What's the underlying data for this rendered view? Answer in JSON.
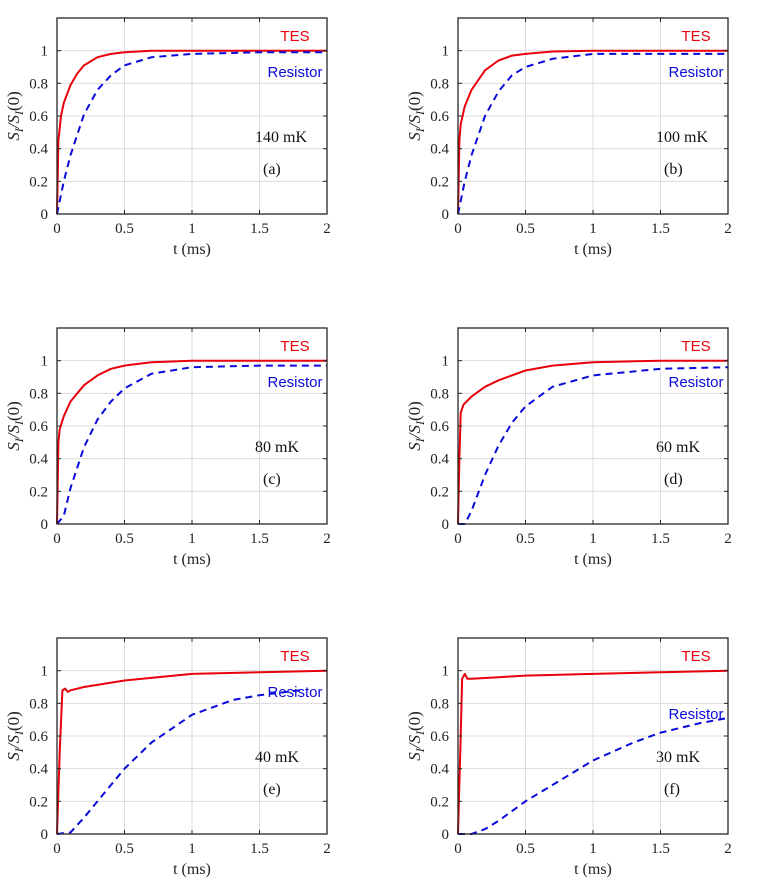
{
  "colors": {
    "tes": "#e8000b",
    "resistor": "#0a0adb",
    "grid": "#dcdcdc",
    "axis": "#262626"
  },
  "chart_data": [
    {
      "type": "line",
      "panel": "(a)",
      "annotation": "140 mK",
      "xlabel": "t (ms)",
      "ylabel": "S_I/S_I(0)",
      "xlim": [
        0,
        2
      ],
      "ylim": [
        0,
        1.2
      ],
      "xticks": [
        "0",
        "0.5",
        "1",
        "1.5",
        "2"
      ],
      "yticks": [
        "0",
        "0.2",
        "0.4",
        "0.6",
        "0.8",
        "1"
      ],
      "grid": true,
      "legend": "top-right",
      "series": [
        {
          "name": "TES",
          "style": "solid",
          "x": [
            0,
            0.01,
            0.03,
            0.05,
            0.1,
            0.15,
            0.2,
            0.3,
            0.4,
            0.5,
            0.7,
            1.0,
            1.5,
            2.0
          ],
          "y": [
            0,
            0.45,
            0.6,
            0.68,
            0.79,
            0.86,
            0.91,
            0.96,
            0.98,
            0.99,
            1.0,
            1.0,
            1.0,
            1.0
          ]
        },
        {
          "name": "Resistor",
          "style": "dashed",
          "x": [
            0,
            0.05,
            0.1,
            0.2,
            0.3,
            0.4,
            0.5,
            0.7,
            1.0,
            1.5,
            2.0
          ],
          "y": [
            0,
            0.2,
            0.36,
            0.61,
            0.76,
            0.85,
            0.91,
            0.96,
            0.98,
            0.99,
            0.99
          ]
        }
      ]
    },
    {
      "type": "line",
      "panel": "(b)",
      "annotation": "100 mK",
      "xlabel": "t (ms)",
      "ylabel": "S_I/S_I(0)",
      "xlim": [
        0,
        2
      ],
      "ylim": [
        0,
        1.2
      ],
      "xticks": [
        "0",
        "0.5",
        "1",
        "1.5",
        "2"
      ],
      "yticks": [
        "0",
        "0.2",
        "0.4",
        "0.6",
        "0.8",
        "1"
      ],
      "grid": true,
      "legend": "top-right",
      "series": [
        {
          "name": "TES",
          "style": "solid",
          "x": [
            0,
            0.01,
            0.02,
            0.05,
            0.1,
            0.2,
            0.3,
            0.4,
            0.5,
            0.7,
            1.0,
            1.5,
            2.0
          ],
          "y": [
            0,
            0.45,
            0.55,
            0.66,
            0.76,
            0.88,
            0.94,
            0.97,
            0.98,
            0.995,
            1.0,
            1.0,
            1.0
          ]
        },
        {
          "name": "Resistor",
          "style": "dashed",
          "x": [
            0,
            0.05,
            0.1,
            0.2,
            0.3,
            0.4,
            0.5,
            0.7,
            1.0,
            1.5,
            2.0
          ],
          "y": [
            0,
            0.2,
            0.36,
            0.6,
            0.75,
            0.85,
            0.9,
            0.95,
            0.98,
            0.98,
            0.98
          ]
        }
      ]
    },
    {
      "type": "line",
      "panel": "(c)",
      "annotation": "80 mK",
      "xlabel": "t (ms)",
      "ylabel": "S_I/S_I(0)",
      "xlim": [
        0,
        2
      ],
      "ylim": [
        0,
        1.2
      ],
      "xticks": [
        "0",
        "0.5",
        "1",
        "1.5",
        "2"
      ],
      "yticks": [
        "0",
        "0.2",
        "0.4",
        "0.6",
        "0.8",
        "1"
      ],
      "grid": true,
      "legend": "top-right",
      "series": [
        {
          "name": "TES",
          "style": "solid",
          "x": [
            0,
            0.01,
            0.02,
            0.05,
            0.1,
            0.2,
            0.3,
            0.4,
            0.5,
            0.7,
            1.0,
            1.5,
            2.0
          ],
          "y": [
            0,
            0.5,
            0.58,
            0.66,
            0.75,
            0.85,
            0.91,
            0.95,
            0.97,
            0.99,
            1.0,
            1.0,
            1.0
          ]
        },
        {
          "name": "Resistor",
          "style": "dashed",
          "x": [
            0,
            0.05,
            0.1,
            0.2,
            0.3,
            0.4,
            0.5,
            0.7,
            1.0,
            1.5,
            2.0
          ],
          "y": [
            0,
            0.05,
            0.22,
            0.47,
            0.64,
            0.75,
            0.83,
            0.92,
            0.96,
            0.97,
            0.97
          ]
        }
      ]
    },
    {
      "type": "line",
      "panel": "(d)",
      "annotation": "60 mK",
      "xlabel": "t (ms)",
      "ylabel": "S_I/S_I(0)",
      "xlim": [
        0,
        2
      ],
      "ylim": [
        0,
        1.2
      ],
      "xticks": [
        "0",
        "0.5",
        "1",
        "1.5",
        "2"
      ],
      "yticks": [
        "0",
        "0.2",
        "0.4",
        "0.6",
        "0.8",
        "1"
      ],
      "grid": true,
      "legend": "top-right",
      "series": [
        {
          "name": "TES",
          "style": "solid",
          "x": [
            0,
            0.01,
            0.02,
            0.04,
            0.1,
            0.2,
            0.3,
            0.5,
            0.7,
            1.0,
            1.5,
            2.0
          ],
          "y": [
            0,
            0.4,
            0.68,
            0.73,
            0.78,
            0.84,
            0.88,
            0.94,
            0.97,
            0.99,
            1.0,
            1.0
          ]
        },
        {
          "name": "Resistor",
          "style": "dashed",
          "x": [
            0,
            0.05,
            0.1,
            0.2,
            0.3,
            0.4,
            0.5,
            0.7,
            1.0,
            1.5,
            2.0
          ],
          "y": [
            0,
            0.0,
            0.08,
            0.3,
            0.48,
            0.62,
            0.72,
            0.84,
            0.91,
            0.95,
            0.96
          ]
        }
      ]
    },
    {
      "type": "line",
      "panel": "(e)",
      "annotation": "40 mK",
      "xlabel": "t (ms)",
      "ylabel": "S_I/S_I(0)",
      "xlim": [
        0,
        2
      ],
      "ylim": [
        0,
        1.2
      ],
      "xticks": [
        "0",
        "0.5",
        "1",
        "1.5",
        "2"
      ],
      "yticks": [
        "0",
        "0.2",
        "0.4",
        "0.6",
        "0.8",
        "1"
      ],
      "grid": true,
      "legend": "top-right",
      "series": [
        {
          "name": "TES",
          "style": "solid",
          "x": [
            0,
            0.02,
            0.04,
            0.06,
            0.08,
            0.1,
            0.2,
            0.5,
            1.0,
            1.5,
            2.0
          ],
          "y": [
            0,
            0.5,
            0.88,
            0.89,
            0.87,
            0.88,
            0.9,
            0.94,
            0.98,
            0.99,
            1.0
          ]
        },
        {
          "name": "Resistor",
          "style": "dashed",
          "x": [
            0,
            0.1,
            0.2,
            0.3,
            0.5,
            0.7,
            1.0,
            1.3,
            1.5,
            1.8
          ],
          "y": [
            0,
            0.01,
            0.1,
            0.2,
            0.4,
            0.56,
            0.73,
            0.82,
            0.85,
            0.88
          ]
        }
      ]
    },
    {
      "type": "line",
      "panel": "(f)",
      "annotation": "30 mK",
      "xlabel": "t (ms)",
      "ylabel": "S_I/S_I(0)",
      "xlim": [
        0,
        2
      ],
      "ylim": [
        0,
        1.2
      ],
      "xticks": [
        "0",
        "0.5",
        "1",
        "1.5",
        "2"
      ],
      "yticks": [
        "0",
        "0.2",
        "0.4",
        "0.6",
        "0.8",
        "1"
      ],
      "grid": true,
      "legend": "top-right",
      "series": [
        {
          "name": "TES",
          "style": "solid",
          "x": [
            0,
            0.02,
            0.03,
            0.05,
            0.07,
            0.1,
            0.3,
            0.5,
            1.0,
            1.5,
            2.0
          ],
          "y": [
            0,
            0.6,
            0.95,
            0.98,
            0.95,
            0.95,
            0.96,
            0.97,
            0.98,
            0.99,
            1.0
          ]
        },
        {
          "name": "Resistor",
          "style": "dashed",
          "x": [
            0,
            0.1,
            0.2,
            0.3,
            0.5,
            0.7,
            1.0,
            1.3,
            1.5,
            1.8,
            2.0
          ],
          "y": [
            0,
            0.0,
            0.03,
            0.08,
            0.2,
            0.3,
            0.45,
            0.56,
            0.62,
            0.68,
            0.71
          ]
        }
      ]
    }
  ]
}
